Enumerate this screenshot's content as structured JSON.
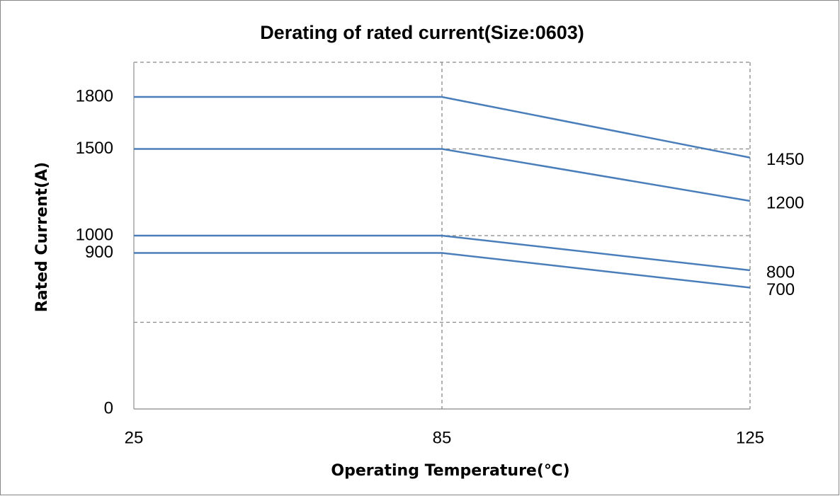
{
  "chart_data": {
    "type": "line",
    "title": "Derating of rated current(Size:0603)",
    "x_label": "Operating Temperature(℃)",
    "y_label": "Rated Current(A)",
    "categories": [
      "25",
      "85",
      "125"
    ],
    "series": [
      {
        "color": "#4a7ebb",
        "values": [
          1800,
          1800,
          1450
        ]
      },
      {
        "color": "#4a7ebb",
        "values": [
          1500,
          1500,
          1200
        ]
      },
      {
        "color": "#4a7ebb",
        "values": [
          1000,
          1000,
          800
        ]
      },
      {
        "color": "#4a7ebb",
        "values": [
          900,
          900,
          700
        ]
      }
    ],
    "ylim": [
      0,
      2000
    ],
    "yticks": [
      0,
      900,
      1000,
      1500,
      1800
    ],
    "ygrid": [
      500,
      1000,
      1500,
      2000
    ],
    "xgrid": true,
    "end_labels": true
  }
}
